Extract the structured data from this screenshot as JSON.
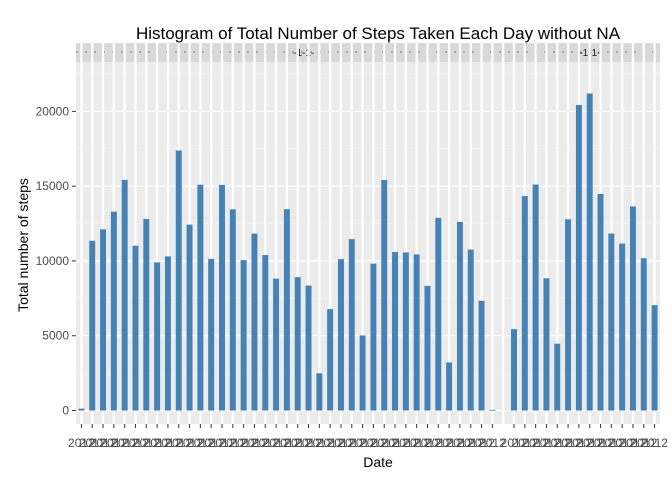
{
  "chart_data": {
    "type": "bar",
    "title": "Histogram of Total Number of Steps Taken Each Day without NA",
    "xlabel": "Date",
    "ylabel": "Total number of steps",
    "ylim": [
      -900,
      23300
    ],
    "yticks": [
      0,
      5000,
      10000,
      15000,
      20000
    ],
    "grid": true,
    "bar_color": "#4682b4",
    "panel_color": "#ebebeb",
    "strip_color": "#d9d9d9",
    "strip_labels": [
      "-1-1-",
      "-1-1-"
    ],
    "x_tick_prefix": "2012",
    "categories": [
      "2012-10-02",
      "2012-10-03",
      "2012-10-04",
      "2012-10-05",
      "2012-10-06",
      "2012-10-07",
      "2012-10-09",
      "2012-10-10",
      "2012-10-11",
      "2012-10-12",
      "2012-10-13",
      "2012-10-14",
      "2012-10-15",
      "2012-10-16",
      "2012-10-17",
      "2012-10-18",
      "2012-10-19",
      "2012-10-20",
      "2012-10-21",
      "2012-10-22",
      "2012-10-23",
      "2012-10-24",
      "2012-10-25",
      "2012-10-26",
      "2012-10-27",
      "2012-10-28",
      "2012-10-29",
      "2012-10-30",
      "2012-10-31",
      "2012-11-02",
      "2012-11-03",
      "2012-11-05",
      "2012-11-06",
      "2012-11-07",
      "2012-11-08",
      "2012-11-11",
      "2012-11-12",
      "2012-11-13",
      "2012-11-15",
      "2012-11-16",
      "2012-11-17",
      "2012-11-18",
      "2012-11-19",
      "2012-11-20",
      "2012-11-21",
      "2012-11-22",
      "2012-11-23",
      "2012-11-24",
      "2012-11-25",
      "2012-11-26",
      "2012-11-27",
      "2012-11-28",
      "2012-11-29"
    ],
    "values": [
      126,
      11352,
      12116,
      13294,
      15420,
      11015,
      12811,
      9900,
      10304,
      17382,
      12426,
      15098,
      10139,
      15084,
      13452,
      10056,
      11829,
      10395,
      8821,
      13460,
      8918,
      8355,
      2492,
      6778,
      10119,
      11458,
      5018,
      9819,
      15414,
      10600,
      10571,
      10439,
      8334,
      12883,
      3219,
      12608,
      10765,
      7336,
      41,
      5441,
      14339,
      15110,
      8841,
      4472,
      12787,
      20427,
      21194,
      14478,
      11834,
      11162,
      13646,
      10183,
      7047
    ],
    "x_positions": [
      0,
      1,
      2,
      3,
      4,
      5,
      6,
      7,
      8,
      9,
      10,
      11,
      12,
      13,
      14,
      15,
      16,
      17,
      18,
      19,
      20,
      21,
      22,
      23,
      24,
      25,
      26,
      27,
      28,
      29,
      30,
      31,
      32,
      33,
      34,
      35,
      36,
      37,
      38,
      40,
      41,
      42,
      43,
      44,
      45,
      46,
      47,
      48,
      49,
      50,
      51,
      52,
      53
    ]
  }
}
